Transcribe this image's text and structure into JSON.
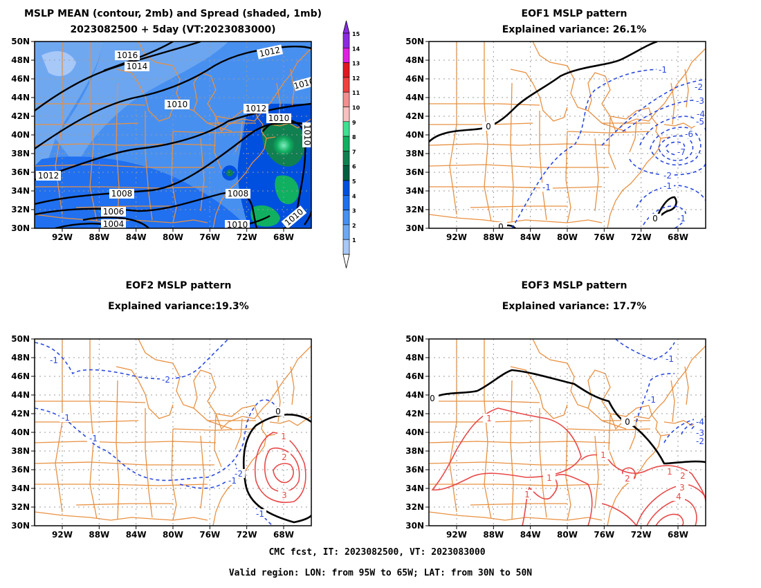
{
  "colors": {
    "contour_mean": "#000000",
    "contour_zero": "#000000",
    "contour_pos": "#e84848",
    "contour_neg": "#2848e0",
    "coastline": "#e89040",
    "grid": "#a0a0a0"
  },
  "panels": [
    {
      "id": "mean",
      "title_lines": [
        "MSLP MEAN (contour, 2mb) and Spread (shaded, 1mb)",
        "2023082500 + 5day (VT:2023083000)"
      ],
      "x_ticks": [
        "92W",
        "88W",
        "84W",
        "80W",
        "76W",
        "72W",
        "68W"
      ],
      "y_ticks": [
        "50N",
        "48N",
        "46N",
        "44N",
        "42N",
        "40N",
        "38N",
        "36N",
        "34N",
        "32N",
        "30N"
      ],
      "contour_labels": [
        "1016",
        "1014",
        "1012",
        "1012",
        "1010",
        "1012",
        "1010",
        "1010",
        "1008",
        "1008",
        "1006",
        "1004",
        "1010",
        "1010",
        "1010"
      ]
    },
    {
      "id": "eof1",
      "title_lines": [
        "EOF1 MSLP pattern",
        "Explained variance: 26.1%"
      ],
      "x_ticks": [
        "92W",
        "88W",
        "84W",
        "80W",
        "76W",
        "72W",
        "68W"
      ],
      "y_ticks": [
        "50N",
        "48N",
        "46N",
        "44N",
        "42N",
        "40N",
        "38N",
        "36N",
        "34N",
        "32N",
        "30N"
      ],
      "contour_labels": [
        "0",
        "-1",
        "-2",
        "-3",
        "-4",
        "-5",
        "-6",
        "-7",
        "-2",
        "-1",
        "-1",
        "0",
        "-1",
        "0"
      ]
    },
    {
      "id": "eof2",
      "title_lines": [
        "EOF2 MSLP pattern",
        "Explained variance:19.3%"
      ],
      "x_ticks": [
        "92W",
        "88W",
        "84W",
        "80W",
        "76W",
        "72W",
        "68W"
      ],
      "y_ticks": [
        "50N",
        "48N",
        "46N",
        "44N",
        "42N",
        "40N",
        "38N",
        "36N",
        "34N",
        "32N",
        "30N"
      ],
      "contour_labels": [
        "-1",
        "-2",
        "-1",
        "-1",
        "-2",
        "-1",
        "0",
        "1",
        "2",
        "3",
        "-1"
      ]
    },
    {
      "id": "eof3",
      "title_lines": [
        "EOF3 MSLP pattern",
        "Explained variance: 17.7%"
      ],
      "x_ticks": [
        "92W",
        "88W",
        "84W",
        "80W",
        "76W",
        "72W",
        "68W"
      ],
      "y_ticks": [
        "50N",
        "48N",
        "46N",
        "44N",
        "42N",
        "40N",
        "38N",
        "36N",
        "34N",
        "32N",
        "30N"
      ],
      "contour_labels": [
        "0",
        "-1",
        "0",
        "-1",
        "-4",
        "-3",
        "-2",
        "1",
        "1",
        "1",
        "2",
        "1",
        "2",
        "3",
        "4",
        "1"
      ]
    }
  ],
  "colorbar": {
    "levels": [
      "15",
      "14",
      "13",
      "12",
      "11",
      "10",
      "9",
      "8",
      "7",
      "6",
      "5",
      "4",
      "3",
      "2",
      "1"
    ],
    "colors": [
      "#8a2be2",
      "#e020e0",
      "#e01820",
      "#f04040",
      "#f09090",
      "#f8c0c0",
      "#40e090",
      "#10b060",
      "#108050",
      "#006040",
      "#0050e0",
      "#2070f0",
      "#4890f0",
      "#70a8f0",
      "#a8c8f8"
    ]
  },
  "footer": {
    "line1": "CMC fcst, IT: 2023082500, VT: 2023083000",
    "line2": "Valid region: LON: from 95W to 65W; LAT: from 30N to 50N"
  }
}
